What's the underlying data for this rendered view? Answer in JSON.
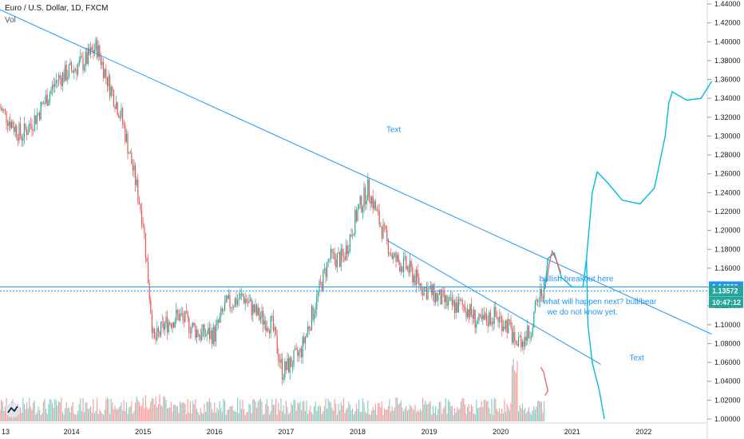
{
  "header": {
    "title": "Euro / U.S. Dollar, 1D, FXCM",
    "vol_label": "Vol"
  },
  "chart_data": {
    "type": "candlestick",
    "title": "Euro / U.S. Dollar, 1D, FXCM",
    "ylim": [
      1.0,
      1.44
    ],
    "y_ticks": [
      "1.44000",
      "1.42000",
      "1.40000",
      "1.38000",
      "1.36000",
      "1.34000",
      "1.32000",
      "1.30000",
      "1.28000",
      "1.26000",
      "1.24000",
      "1.22000",
      "1.20000",
      "1.18000",
      "1.16000",
      "1.14000",
      "1.12000",
      "1.10000",
      "1.08000",
      "1.06000",
      "1.04000",
      "1.02000",
      "1.00000"
    ],
    "y_tick_values": [
      1.44,
      1.42,
      1.4,
      1.38,
      1.36,
      1.34,
      1.32,
      1.3,
      1.28,
      1.26,
      1.24,
      1.22,
      1.2,
      1.18,
      1.16,
      1.14,
      1.12,
      1.1,
      1.08,
      1.06,
      1.04,
      1.02,
      1.0
    ],
    "x_ticks": [
      "13",
      "2014",
      "2015",
      "2016",
      "2017",
      "2018",
      "2019",
      "2020",
      "2021",
      "2022"
    ],
    "x_tick_years": [
      2013.0,
      2014.0,
      2015.0,
      2016.0,
      2017.0,
      2018.0,
      2019.0,
      2020.0,
      2021.0,
      2022.0
    ],
    "approx_path": [
      [
        2013.0,
        1.33
      ],
      [
        2013.3,
        1.3
      ],
      [
        2013.5,
        1.32
      ],
      [
        2013.8,
        1.36
      ],
      [
        2014.0,
        1.37
      ],
      [
        2014.2,
        1.38
      ],
      [
        2014.35,
        1.395
      ],
      [
        2014.5,
        1.36
      ],
      [
        2014.7,
        1.32
      ],
      [
        2014.9,
        1.25
      ],
      [
        2015.0,
        1.21
      ],
      [
        2015.15,
        1.08
      ],
      [
        2015.3,
        1.1
      ],
      [
        2015.5,
        1.11
      ],
      [
        2015.8,
        1.09
      ],
      [
        2016.0,
        1.09
      ],
      [
        2016.15,
        1.12
      ],
      [
        2016.4,
        1.13
      ],
      [
        2016.6,
        1.11
      ],
      [
        2016.8,
        1.1
      ],
      [
        2016.95,
        1.05
      ],
      [
        2017.2,
        1.07
      ],
      [
        2017.4,
        1.12
      ],
      [
        2017.6,
        1.17
      ],
      [
        2017.8,
        1.17
      ],
      [
        2018.0,
        1.22
      ],
      [
        2018.15,
        1.245
      ],
      [
        2018.3,
        1.21
      ],
      [
        2018.5,
        1.17
      ],
      [
        2018.7,
        1.16
      ],
      [
        2018.9,
        1.14
      ],
      [
        2019.1,
        1.13
      ],
      [
        2019.3,
        1.12
      ],
      [
        2019.5,
        1.12
      ],
      [
        2019.7,
        1.1
      ],
      [
        2019.9,
        1.11
      ],
      [
        2020.1,
        1.1
      ],
      [
        2020.2,
        1.08
      ],
      [
        2020.4,
        1.09
      ],
      [
        2020.5,
        1.12
      ],
      [
        2020.6,
        1.14
      ],
      [
        2020.62,
        1.136
      ]
    ],
    "volume_label": "Vol",
    "price_tags": [
      {
        "label": "1.14000",
        "value": 1.14,
        "color": "#2196f3"
      },
      {
        "label": "1.13572",
        "value": 1.13572,
        "color": "#26a69a"
      },
      {
        "label": "10:47:12",
        "value": 1.1237,
        "color": "#26a69a"
      }
    ],
    "annotations": [
      {
        "text": "Text",
        "x": 2018.4,
        "y": 1.304
      },
      {
        "text": "bullish breakout here",
        "x": 2020.54,
        "y": 1.146
      },
      {
        "text": "what will happen next? bull/bear",
        "x": 2020.59,
        "y": 1.122
      },
      {
        "text": "we do not know yet.",
        "x": 2020.65,
        "y": 1.111
      },
      {
        "text": "Text",
        "x": 2021.8,
        "y": 1.062
      }
    ],
    "trendlines": [
      {
        "x1": 2013.0,
        "y1": 1.434,
        "x2": 2022.95,
        "y2": 1.09
      },
      {
        "x1": 2018.4,
        "y1": 1.19,
        "x2": 2021.4,
        "y2": 1.058
      }
    ],
    "horizontal_lines": [
      1.14,
      1.13572
    ],
    "colors": {
      "up": "#26a69a",
      "down": "#ef5350",
      "line": "#2196f3",
      "drawing": "#00bcd4",
      "red_drawing": "#ef5350"
    }
  }
}
